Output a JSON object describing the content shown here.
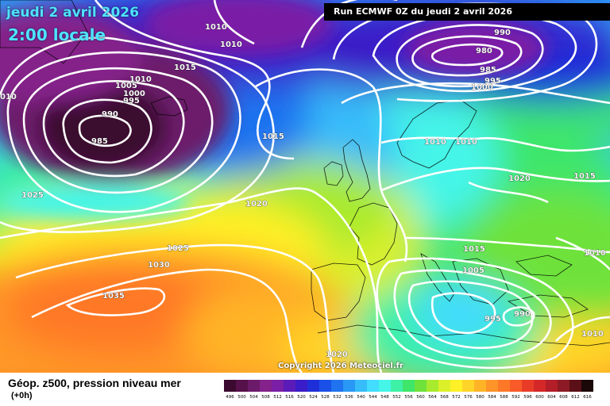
{
  "header": {
    "date": "jeudi 2 avril 2026",
    "time": "2:00 locale",
    "run": "Run ECMWF 0Z du jeudi 2 avril 2026"
  },
  "copyright": "Copyright 2026 Meteociel.fr",
  "footer": {
    "title": "Géop. z500, pression niveau mer",
    "subtitle": "(+0h)"
  },
  "scale": [
    {
      "label": "496",
      "color": "#3b0a2e"
    },
    {
      "label": "500",
      "color": "#56104a"
    },
    {
      "label": "504",
      "color": "#6c1a6a"
    },
    {
      "label": "508",
      "color": "#84218a"
    },
    {
      "label": "512",
      "color": "#7a1fa6"
    },
    {
      "label": "516",
      "color": "#5b1bb8"
    },
    {
      "label": "520",
      "color": "#3a1cc8"
    },
    {
      "label": "524",
      "color": "#1f2fd8"
    },
    {
      "label": "528",
      "color": "#1a50e8"
    },
    {
      "label": "532",
      "color": "#1f73ef"
    },
    {
      "label": "536",
      "color": "#2a98f5"
    },
    {
      "label": "540",
      "color": "#37bcfa"
    },
    {
      "label": "544",
      "color": "#42dcff"
    },
    {
      "label": "548",
      "color": "#44f5e8"
    },
    {
      "label": "552",
      "color": "#3ef0a6"
    },
    {
      "label": "556",
      "color": "#3ee66a"
    },
    {
      "label": "560",
      "color": "#6ee23a"
    },
    {
      "label": "564",
      "color": "#a8ea2e"
    },
    {
      "label": "568",
      "color": "#dcf02a"
    },
    {
      "label": "572",
      "color": "#fff028"
    },
    {
      "label": "576",
      "color": "#ffd428"
    },
    {
      "label": "580",
      "color": "#ffb428"
    },
    {
      "label": "584",
      "color": "#ff9428"
    },
    {
      "label": "588",
      "color": "#ff7828"
    },
    {
      "label": "592",
      "color": "#f85a28"
    },
    {
      "label": "596",
      "color": "#e83c28"
    },
    {
      "label": "600",
      "color": "#d42828"
    },
    {
      "label": "604",
      "color": "#b41e28"
    },
    {
      "label": "608",
      "color": "#8c1a24"
    },
    {
      "label": "612",
      "color": "#5a1016"
    },
    {
      "label": "616",
      "color": "#1a0808"
    }
  ],
  "isobar_labels": [
    {
      "text": "1010",
      "id": "iso-1010-a"
    },
    {
      "text": "1010",
      "id": "iso-1010-b"
    },
    {
      "text": "1015",
      "id": "iso-1015-a"
    },
    {
      "text": "1010",
      "id": "iso-1010-c"
    },
    {
      "text": "1005",
      "id": "iso-1005-a"
    },
    {
      "text": "1000",
      "id": "iso-1000-a"
    },
    {
      "text": "995",
      "id": "iso-995-a"
    },
    {
      "text": "990",
      "id": "iso-990-a"
    },
    {
      "text": "985",
      "id": "iso-985-a"
    },
    {
      "text": "010",
      "id": "iso-010-edge"
    },
    {
      "text": "1025",
      "id": "iso-1025-a"
    },
    {
      "text": "1020",
      "id": "iso-1020-a"
    },
    {
      "text": "1015",
      "id": "iso-1015-b"
    },
    {
      "text": "1025",
      "id": "iso-1025-b"
    },
    {
      "text": "1030",
      "id": "iso-1030-a"
    },
    {
      "text": "1035",
      "id": "iso-1035-a"
    },
    {
      "text": "1020",
      "id": "iso-1020-b"
    },
    {
      "text": "990",
      "id": "iso-990-b"
    },
    {
      "text": "980",
      "id": "iso-980-a"
    },
    {
      "text": "985",
      "id": "iso-985-b"
    },
    {
      "text": "995",
      "id": "iso-995-b"
    },
    {
      "text": "1000",
      "id": "iso-1000-b"
    },
    {
      "text": "1010",
      "id": "iso-1010-d"
    },
    {
      "text": "1010",
      "id": "iso-1010-e"
    },
    {
      "text": "1020",
      "id": "iso-1020-c"
    },
    {
      "text": "1015",
      "id": "iso-1015-c"
    },
    {
      "text": "1015",
      "id": "iso-1015-d"
    },
    {
      "text": "1005",
      "id": "iso-1005-b"
    },
    {
      "text": "1010",
      "id": "iso-1010-f"
    },
    {
      "text": "995",
      "id": "iso-995-c"
    },
    {
      "text": "990",
      "id": "iso-990-c"
    },
    {
      "text": "1010",
      "id": "iso-1010-g"
    }
  ]
}
